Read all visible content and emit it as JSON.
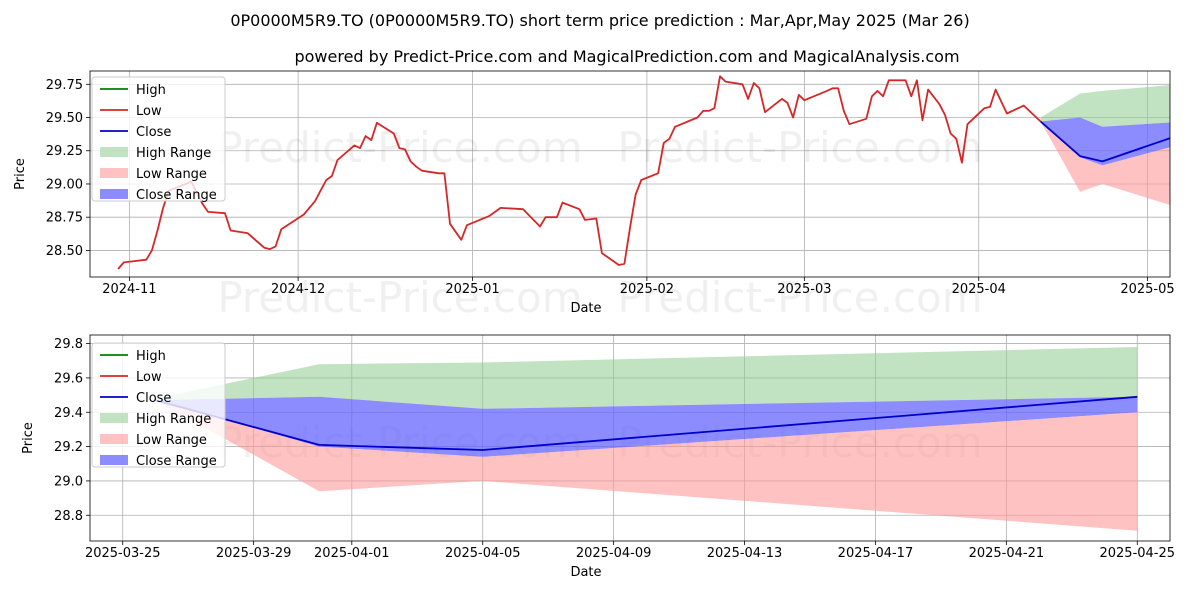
{
  "page": {
    "title": "0P0000M5R9.TO (0P0000M5R9.TO) short term price prediction : Mar,Apr,May 2025 (Mar 26)",
    "subtitle": "powered by Predict-Price.com and MagicalPrediction.com and MagicalAnalysis.com",
    "watermark": "Predict-Price.com"
  },
  "colors": {
    "high": "#008000",
    "low": "#d62728",
    "close": "#0000cc",
    "high_range": "#8fcc8f",
    "low_range": "#ff9999",
    "close_range": "#6666ff"
  },
  "legend": [
    "High",
    "Low",
    "Close",
    "High Range",
    "Low Range",
    "Close Range"
  ],
  "chart_data": [
    {
      "type": "line",
      "xlabel": "Date",
      "ylabel": "Price",
      "x_start": "2024-10-30",
      "xlim": [
        "2024-10-25",
        "2025-05-05"
      ],
      "ylim": [
        28.3,
        29.85
      ],
      "xticks": [
        "2024-11",
        "2024-12",
        "2025-01",
        "2025-02",
        "2025-03",
        "2025-04",
        "2025-05"
      ],
      "xtick_dates": [
        "2024-11-01",
        "2024-12-01",
        "2025-01-01",
        "2025-02-01",
        "2025-03-01",
        "2025-04-01",
        "2025-05-01"
      ],
      "yticks": [
        28.5,
        28.75,
        29.0,
        29.25,
        29.5,
        29.75
      ],
      "grid": true,
      "legend_position": "upper left",
      "series": [
        {
          "name": "Low",
          "points": [
            [
              "2024-10-30",
              28.36
            ],
            [
              "2024-10-31",
              28.41
            ],
            [
              "2024-11-04",
              28.43
            ],
            [
              "2024-11-05",
              28.5
            ],
            [
              "2024-11-06",
              28.65
            ],
            [
              "2024-11-07",
              28.82
            ],
            [
              "2024-11-08",
              28.95
            ],
            [
              "2024-11-11",
              29.0
            ],
            [
              "2024-11-12",
              29.02
            ],
            [
              "2024-11-13",
              28.93
            ],
            [
              "2024-11-14",
              28.85
            ],
            [
              "2024-11-15",
              28.79
            ],
            [
              "2024-11-18",
              28.78
            ],
            [
              "2024-11-19",
              28.65
            ],
            [
              "2024-11-22",
              28.63
            ],
            [
              "2024-11-25",
              28.52
            ],
            [
              "2024-11-26",
              28.51
            ],
            [
              "2024-11-27",
              28.53
            ],
            [
              "2024-11-28",
              28.66
            ],
            [
              "2024-12-02",
              28.77
            ],
            [
              "2024-12-04",
              28.87
            ],
            [
              "2024-12-05",
              28.95
            ],
            [
              "2024-12-06",
              29.03
            ],
            [
              "2024-12-07",
              29.06
            ],
            [
              "2024-12-08",
              29.18
            ],
            [
              "2024-12-11",
              29.29
            ],
            [
              "2024-12-12",
              29.27
            ],
            [
              "2024-12-13",
              29.36
            ],
            [
              "2024-12-14",
              29.33
            ],
            [
              "2024-12-15",
              29.46
            ],
            [
              "2024-12-18",
              29.38
            ],
            [
              "2024-12-19",
              29.27
            ],
            [
              "2024-12-20",
              29.26
            ],
            [
              "2024-12-21",
              29.17
            ],
            [
              "2024-12-22",
              29.13
            ],
            [
              "2024-12-23",
              29.1
            ],
            [
              "2024-12-26",
              29.08
            ],
            [
              "2024-12-27",
              29.08
            ],
            [
              "2024-12-28",
              28.7
            ],
            [
              "2024-12-30",
              28.58
            ],
            [
              "2024-12-31",
              28.69
            ],
            [
              "2025-01-04",
              28.76
            ],
            [
              "2025-01-06",
              28.82
            ],
            [
              "2025-01-10",
              28.81
            ],
            [
              "2025-01-13",
              28.68
            ],
            [
              "2025-01-14",
              28.75
            ],
            [
              "2025-01-16",
              28.75
            ],
            [
              "2025-01-17",
              28.86
            ],
            [
              "2025-01-20",
              28.81
            ],
            [
              "2025-01-21",
              28.73
            ],
            [
              "2025-01-23",
              28.74
            ],
            [
              "2025-01-24",
              28.48
            ],
            [
              "2025-01-27",
              28.39
            ],
            [
              "2025-01-28",
              28.4
            ],
            [
              "2025-01-29",
              28.67
            ],
            [
              "2025-01-30",
              28.92
            ],
            [
              "2025-01-31",
              29.03
            ],
            [
              "2025-02-03",
              29.08
            ],
            [
              "2025-02-04",
              29.31
            ],
            [
              "2025-02-05",
              29.34
            ],
            [
              "2025-02-06",
              29.43
            ],
            [
              "2025-02-10",
              29.5
            ],
            [
              "2025-02-11",
              29.55
            ],
            [
              "2025-02-12",
              29.55
            ],
            [
              "2025-02-13",
              29.57
            ],
            [
              "2025-02-14",
              29.81
            ],
            [
              "2025-02-15",
              29.77
            ],
            [
              "2025-02-18",
              29.75
            ],
            [
              "2025-02-19",
              29.64
            ],
            [
              "2025-02-20",
              29.76
            ],
            [
              "2025-02-21",
              29.72
            ],
            [
              "2025-02-22",
              29.54
            ],
            [
              "2025-02-25",
              29.64
            ],
            [
              "2025-02-26",
              29.61
            ],
            [
              "2025-02-27",
              29.5
            ],
            [
              "2025-02-28",
              29.67
            ],
            [
              "2025-03-01",
              29.63
            ],
            [
              "2025-03-05",
              29.7
            ],
            [
              "2025-03-06",
              29.72
            ],
            [
              "2025-03-07",
              29.72
            ],
            [
              "2025-03-08",
              29.55
            ],
            [
              "2025-03-09",
              29.45
            ],
            [
              "2025-03-12",
              29.49
            ],
            [
              "2025-03-13",
              29.66
            ],
            [
              "2025-03-14",
              29.7
            ],
            [
              "2025-03-15",
              29.66
            ],
            [
              "2025-03-16",
              29.78
            ],
            [
              "2025-03-19",
              29.78
            ],
            [
              "2025-03-20",
              29.66
            ],
            [
              "2025-03-21",
              29.78
            ],
            [
              "2025-03-22",
              29.48
            ],
            [
              "2025-03-23",
              29.71
            ],
            [
              "2025-03-25",
              29.6
            ],
            [
              "2025-03-26",
              29.52
            ]
          ]
        },
        {
          "name": "Low",
          "points": [
            [
              "2025-03-26",
              29.52
            ],
            [
              "2025-03-27",
              29.38
            ],
            [
              "2025-03-28",
              29.34
            ],
            [
              "2025-03-29",
              29.16
            ],
            [
              "2025-03-30",
              29.45
            ],
            [
              "2025-04-02",
              29.57
            ],
            [
              "2025-04-03",
              29.58
            ],
            [
              "2025-04-04",
              29.71
            ],
            [
              "2025-04-06",
              29.53
            ],
            [
              "2025-04-09",
              29.59
            ],
            [
              "2025-04-12",
              29.47
            ]
          ]
        },
        {
          "name": "Close",
          "points": [
            [
              "2025-04-12",
              29.47
            ],
            [
              "2025-04-19",
              29.21
            ],
            [
              "2025-04-23",
              29.17
            ],
            [
              "2025-05-15",
              29.49
            ]
          ]
        }
      ],
      "bands": [
        {
          "name": "High Range",
          "points": [
            [
              "2025-04-12",
              29.47,
              29.5
            ],
            [
              "2025-04-19",
              29.5,
              29.68
            ],
            [
              "2025-04-23",
              29.43,
              29.7
            ],
            [
              "2025-05-15",
              29.49,
              29.78
            ]
          ]
        },
        {
          "name": "Close Range",
          "points": [
            [
              "2025-04-12",
              29.47,
              29.47
            ],
            [
              "2025-04-19",
              29.2,
              29.5
            ],
            [
              "2025-04-23",
              29.14,
              29.43
            ],
            [
              "2025-05-15",
              29.39,
              29.49
            ]
          ]
        },
        {
          "name": "Low Range",
          "points": [
            [
              "2025-04-12",
              29.47,
              29.47
            ],
            [
              "2025-04-19",
              28.94,
              29.2
            ],
            [
              "2025-04-23",
              29.0,
              29.14
            ],
            [
              "2025-05-15",
              28.71,
              29.39
            ]
          ]
        }
      ]
    },
    {
      "type": "line",
      "xlabel": "Date",
      "ylabel": "Price",
      "xlim": [
        "2025-03-24",
        "2025-04-26"
      ],
      "ylim": [
        28.65,
        29.85
      ],
      "xticks": [
        "2025-03-25",
        "2025-03-29",
        "2025-04-01",
        "2025-04-05",
        "2025-04-09",
        "2025-04-13",
        "2025-04-17",
        "2025-04-21",
        "2025-04-25"
      ],
      "yticks": [
        28.8,
        29.0,
        29.2,
        29.4,
        29.6,
        29.8
      ],
      "grid": true,
      "legend_position": "upper left",
      "series": [
        {
          "name": "Close",
          "points": [
            [
              "2025-03-26",
              29.47
            ],
            [
              "2025-03-31",
              29.21
            ],
            [
              "2025-04-05",
              29.18
            ],
            [
              "2025-04-25",
              29.49
            ]
          ]
        }
      ],
      "bands": [
        {
          "name": "High Range",
          "points": [
            [
              "2025-03-26",
              29.47,
              29.48
            ],
            [
              "2025-03-31",
              29.49,
              29.68
            ],
            [
              "2025-04-05",
              29.42,
              29.69
            ],
            [
              "2025-04-25",
              29.49,
              29.78
            ]
          ]
        },
        {
          "name": "Close Range",
          "points": [
            [
              "2025-03-26",
              29.47,
              29.47
            ],
            [
              "2025-03-31",
              29.2,
              29.49
            ],
            [
              "2025-04-05",
              29.14,
              29.42
            ],
            [
              "2025-04-25",
              29.4,
              29.49
            ]
          ]
        },
        {
          "name": "Low Range",
          "points": [
            [
              "2025-03-26",
              29.47,
              29.47
            ],
            [
              "2025-03-31",
              28.94,
              29.2
            ],
            [
              "2025-04-05",
              29.0,
              29.14
            ],
            [
              "2025-04-25",
              28.71,
              29.4
            ]
          ]
        }
      ]
    }
  ]
}
